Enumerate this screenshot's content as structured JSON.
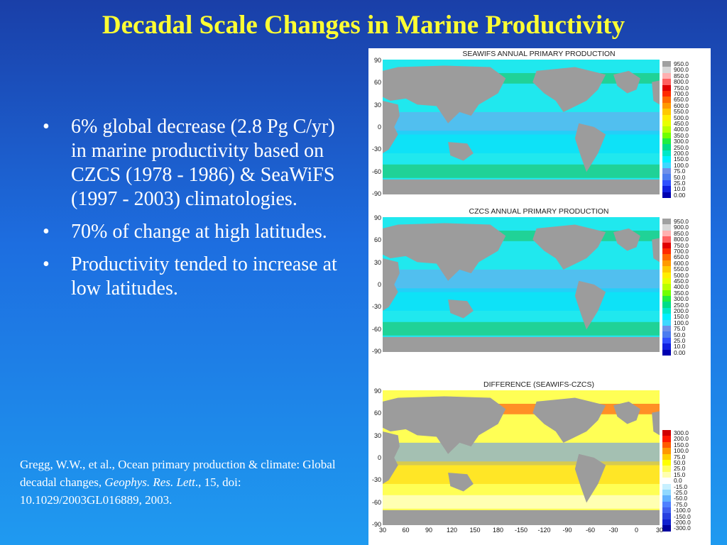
{
  "slide": {
    "title": "Decadal Scale Changes in Marine Productivity",
    "bullets": [
      "6% global decrease (2.8 Pg C/yr) in marine productivity based on CZCS (1978 - 1986) & SeaWiFS (1997 - 2003) climatologies.",
      "70% of change at high latitudes.",
      "Productivity tended to increase at low latitudes."
    ],
    "bullet_marker": "•",
    "citation": {
      "prefix": "Gregg, W.W., et al., Ocean primary production & climate: Global decadal changes, ",
      "journal": "Geophys. Res. Lett",
      "suffix": "., 15, doi: 10.1029/2003GL016889, 2003."
    }
  },
  "figure": {
    "panels": [
      {
        "title": "SEAWIFS ANNUAL PRIMARY PRODUCTION",
        "legend": "production"
      },
      {
        "title": "CZCS ANNUAL PRIMARY PRODUCTION",
        "legend": "production"
      },
      {
        "title": "DIFFERENCE (SEAWIFS-CZCS)",
        "legend": "difference"
      }
    ],
    "lat_ticks": [
      "90",
      "60",
      "30",
      "0",
      "-30",
      "-60",
      "-90"
    ],
    "lon_ticks": [
      "30",
      "60",
      "90",
      "120",
      "150",
      "180",
      "-150",
      "-120",
      "-90",
      "-60",
      "-30",
      "0",
      "30"
    ],
    "production_legend": [
      "950.0",
      "900.0",
      "850.0",
      "800.0",
      "750.0",
      "700.0",
      "650.0",
      "600.0",
      "550.0",
      "500.0",
      "450.0",
      "400.0",
      "350.0",
      "300.0",
      "250.0",
      "200.0",
      "150.0",
      "100.0",
      "75.0",
      "50.0",
      "25.0",
      "10.0",
      "0.00"
    ],
    "production_colors": [
      "#a0a0a0",
      "#d8d8d8",
      "#ffb0b0",
      "#ff6060",
      "#e00000",
      "#ff2a00",
      "#ff6a00",
      "#ff9900",
      "#ffc800",
      "#ffee00",
      "#e8ff00",
      "#b8ff00",
      "#70ff00",
      "#20ee40",
      "#00dd88",
      "#00e8c8",
      "#00f0ff",
      "#40d8ff",
      "#7090e8",
      "#4c7cf0",
      "#3050ff",
      "#1020e0",
      "#0000b0"
    ],
    "difference_legend": [
      "300.0",
      "200.0",
      "150.0",
      "100.0",
      "75.0",
      "50.0",
      "25.0",
      "15.0",
      "0.0",
      "-15.0",
      "-25.0",
      "-50.0",
      "-75.0",
      "-100.0",
      "-150.0",
      "-200.0",
      "-300.0"
    ],
    "difference_colors": [
      "#d00000",
      "#ff1800",
      "#ff5a00",
      "#ff9800",
      "#ffd000",
      "#ffff00",
      "#ffff60",
      "#ffffb0",
      "#ffffff",
      "#c8f0ff",
      "#90d8ff",
      "#60b0ff",
      "#5080ff",
      "#4060f0",
      "#2840e0",
      "#1020d0",
      "#0000a0"
    ],
    "colors": {
      "land": "#9c9c9c",
      "title_text": "#ffff33",
      "body_text": "#ffffff"
    }
  }
}
